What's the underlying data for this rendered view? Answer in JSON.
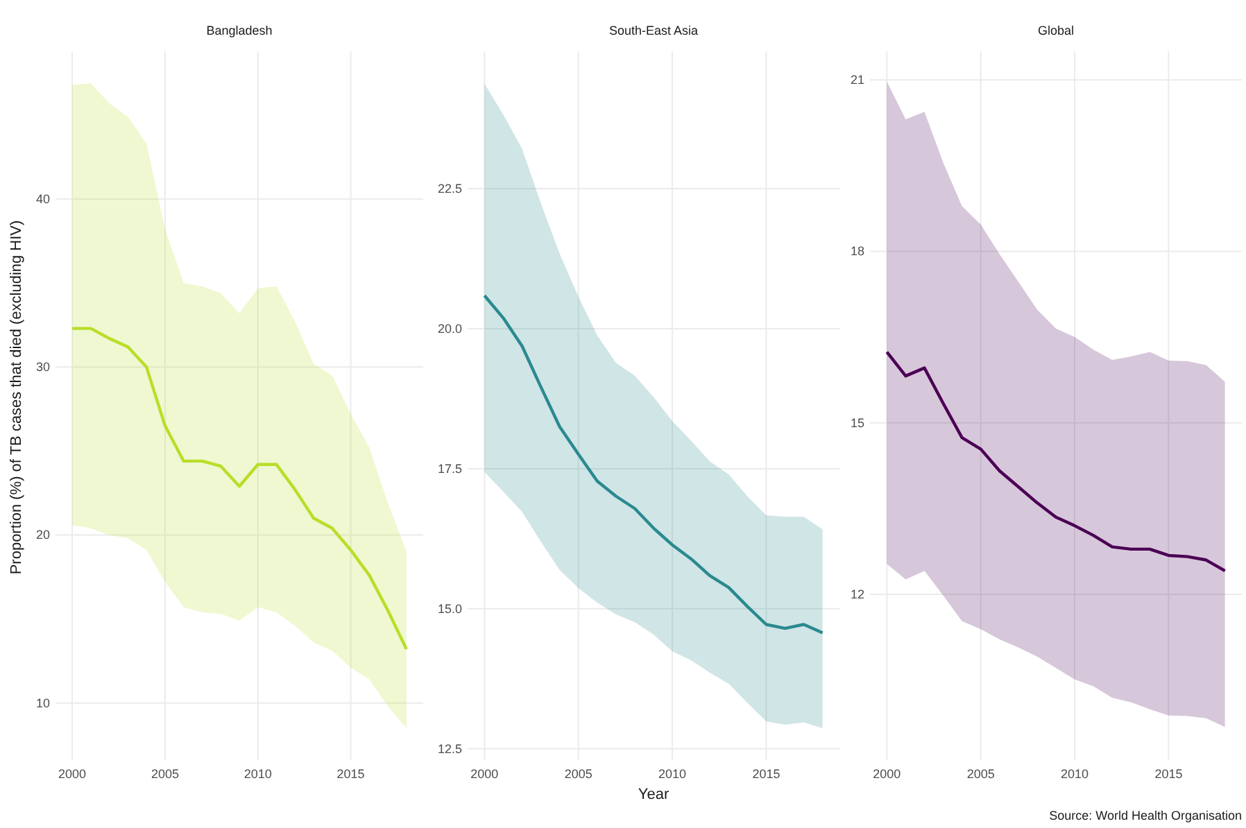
{
  "chart_data": [
    {
      "type": "line",
      "title": "Bangladesh",
      "ylabel": "Proportion (%) of TB cases that died (excluding HIV)",
      "x": [
        2000,
        2001,
        2002,
        2003,
        2004,
        2005,
        2006,
        2007,
        2008,
        2009,
        2010,
        2011,
        2012,
        2013,
        2014,
        2015,
        2016,
        2017,
        2018
      ],
      "series": [
        {
          "color": "#b8de29",
          "values": [
            32.3,
            32.3,
            31.7,
            31.2,
            30.0,
            26.5,
            24.4,
            24.4,
            24.1,
            22.9,
            24.2,
            24.2,
            22.7,
            21.0,
            20.4,
            19.1,
            17.6,
            15.5,
            13.2
          ],
          "lower": [
            20.6,
            20.4,
            20.0,
            19.8,
            19.1,
            17.2,
            15.7,
            15.4,
            15.3,
            14.9,
            15.7,
            15.4,
            14.6,
            13.6,
            13.1,
            12.1,
            11.4,
            9.8,
            8.5
          ],
          "upper": [
            46.8,
            46.9,
            45.7,
            44.9,
            43.3,
            38.2,
            35.0,
            34.8,
            34.4,
            33.2,
            34.7,
            34.8,
            32.7,
            30.2,
            29.5,
            27.2,
            25.2,
            21.9,
            19.0
          ]
        }
      ],
      "xlim": [
        1999.1,
        2018.9
      ],
      "xticks": [
        2000,
        2005,
        2010,
        2015
      ],
      "ylim": [
        6.6,
        48.8
      ],
      "yticks": [
        10,
        20,
        30,
        40
      ],
      "grid": true
    },
    {
      "type": "line",
      "title": "South-East Asia",
      "xlabel": "Year",
      "x": [
        2000,
        2001,
        2002,
        2003,
        2004,
        2005,
        2006,
        2007,
        2008,
        2009,
        2010,
        2011,
        2012,
        2013,
        2014,
        2015,
        2016,
        2017,
        2018
      ],
      "series": [
        {
          "color": "#2a8a8f",
          "values": [
            20.59,
            20.19,
            19.69,
            18.96,
            18.25,
            17.76,
            17.28,
            17.01,
            16.79,
            16.44,
            16.14,
            15.89,
            15.59,
            15.38,
            15.04,
            14.72,
            14.65,
            14.72,
            14.57
          ],
          "lower": [
            17.44,
            17.09,
            16.73,
            16.2,
            15.69,
            15.37,
            15.11,
            14.9,
            14.76,
            14.54,
            14.24,
            14.08,
            13.86,
            13.66,
            13.32,
            12.99,
            12.93,
            12.97,
            12.87
          ],
          "upper": [
            24.37,
            23.82,
            23.21,
            22.24,
            21.34,
            20.57,
            19.88,
            19.39,
            19.16,
            18.78,
            18.35,
            18.0,
            17.63,
            17.4,
            17.01,
            16.67,
            16.64,
            16.64,
            16.42
          ]
        }
      ],
      "xlim": [
        1999.1,
        2018.9
      ],
      "xticks": [
        2000,
        2005,
        2010,
        2015
      ],
      "ylim": [
        12.3,
        24.95
      ],
      "yticks": [
        {
          "value": 12.5,
          "label": "12.5"
        },
        {
          "value": 15,
          "label": "15.0"
        },
        {
          "value": 17.5,
          "label": "17.5"
        },
        {
          "value": 20,
          "label": "20.0"
        },
        {
          "value": 22.5,
          "label": "22.5"
        }
      ],
      "grid": true
    },
    {
      "type": "line",
      "title": "Global",
      "annotations": [
        "Source: World Health Organisation"
      ],
      "x": [
        2000,
        2001,
        2002,
        2003,
        2004,
        2005,
        2006,
        2007,
        2008,
        2009,
        2010,
        2011,
        2012,
        2013,
        2014,
        2015,
        2016,
        2017,
        2018
      ],
      "series": [
        {
          "color": "#4b0055",
          "values": [
            16.24,
            15.82,
            15.96,
            15.34,
            14.74,
            14.54,
            14.16,
            13.88,
            13.6,
            13.35,
            13.2,
            13.03,
            12.83,
            12.79,
            12.79,
            12.68,
            12.66,
            12.6,
            12.41
          ],
          "lower": [
            12.53,
            12.26,
            12.41,
            11.98,
            11.53,
            11.39,
            11.21,
            11.07,
            10.91,
            10.71,
            10.51,
            10.39,
            10.19,
            10.11,
            9.99,
            9.88,
            9.87,
            9.83,
            9.68
          ],
          "upper": [
            20.97,
            20.31,
            20.44,
            19.55,
            18.79,
            18.47,
            17.95,
            17.47,
            16.98,
            16.65,
            16.5,
            16.28,
            16.1,
            16.16,
            16.24,
            16.09,
            16.08,
            16.01,
            15.72
          ]
        }
      ],
      "xlim": [
        1999.1,
        2018.9
      ],
      "xticks": [
        2000,
        2005,
        2010,
        2015
      ],
      "ylim": [
        9.1,
        21.5
      ],
      "yticks": [
        12,
        15,
        18,
        21
      ],
      "grid": true
    }
  ]
}
